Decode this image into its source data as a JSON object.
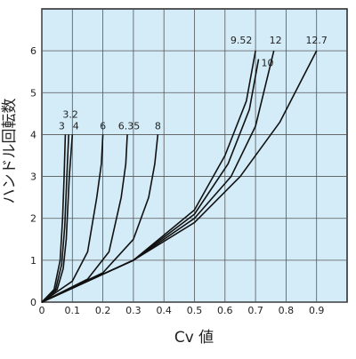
{
  "chart_data": {
    "type": "line",
    "xlabel": "Cv 値",
    "ylabel": "ハンドル回転数",
    "xlim": [
      0,
      1.0
    ],
    "ylim": [
      0,
      7
    ],
    "xticks": [
      0,
      0.1,
      0.2,
      0.3,
      0.4,
      0.5,
      0.6,
      0.7,
      0.8,
      0.9
    ],
    "yticks": [
      0,
      1,
      2,
      3,
      4,
      5,
      6
    ],
    "grid": true,
    "background": "#d4ecf8",
    "series": [
      {
        "name": "3",
        "color": "#111111",
        "x": [
          0,
          0.04,
          0.06,
          0.068,
          0.073,
          0.077
        ],
        "values": [
          0,
          0.3,
          1,
          2,
          3,
          4
        ]
      },
      {
        "name": "3.2",
        "color": "#111111",
        "x": [
          0,
          0.045,
          0.065,
          0.075,
          0.082,
          0.088
        ],
        "values": [
          0,
          0.3,
          0.9,
          1.8,
          3,
          4
        ]
      },
      {
        "name": "4",
        "color": "#111111",
        "x": [
          0,
          0.05,
          0.07,
          0.08,
          0.09,
          0.1
        ],
        "values": [
          0,
          0.3,
          0.8,
          1.5,
          3,
          4
        ]
      },
      {
        "name": "6",
        "color": "#111111",
        "x": [
          0,
          0.1,
          0.15,
          0.18,
          0.195,
          0.2
        ],
        "values": [
          0,
          0.5,
          1.2,
          2.5,
          3.3,
          4
        ]
      },
      {
        "name": "6.35",
        "color": "#111111",
        "x": [
          0,
          0.15,
          0.22,
          0.26,
          0.275,
          0.28
        ],
        "values": [
          0,
          0.55,
          1.2,
          2.5,
          3.3,
          4
        ]
      },
      {
        "name": "8",
        "color": "#111111",
        "x": [
          0,
          0.2,
          0.3,
          0.35,
          0.37,
          0.38
        ],
        "values": [
          0,
          0.7,
          1.5,
          2.5,
          3.3,
          4
        ]
      },
      {
        "name": "9.52",
        "color": "#111111",
        "x": [
          0,
          0.3,
          0.5,
          0.6,
          0.67,
          0.7
        ],
        "values": [
          0,
          1,
          2.2,
          3.5,
          4.8,
          6
        ]
      },
      {
        "name": "10",
        "color": "#111111",
        "x": [
          0,
          0.3,
          0.5,
          0.61,
          0.68,
          0.71
        ],
        "values": [
          0,
          1,
          2.1,
          3.3,
          4.6,
          5.8
        ]
      },
      {
        "name": "12",
        "color": "#111111",
        "x": [
          0,
          0.3,
          0.5,
          0.62,
          0.7,
          0.76
        ],
        "values": [
          0,
          1,
          2,
          3,
          4.2,
          6
        ]
      },
      {
        "name": "12.7",
        "color": "#111111",
        "x": [
          0,
          0.3,
          0.5,
          0.65,
          0.78,
          0.9
        ],
        "values": [
          0,
          1,
          1.9,
          3,
          4.3,
          6
        ]
      }
    ]
  }
}
